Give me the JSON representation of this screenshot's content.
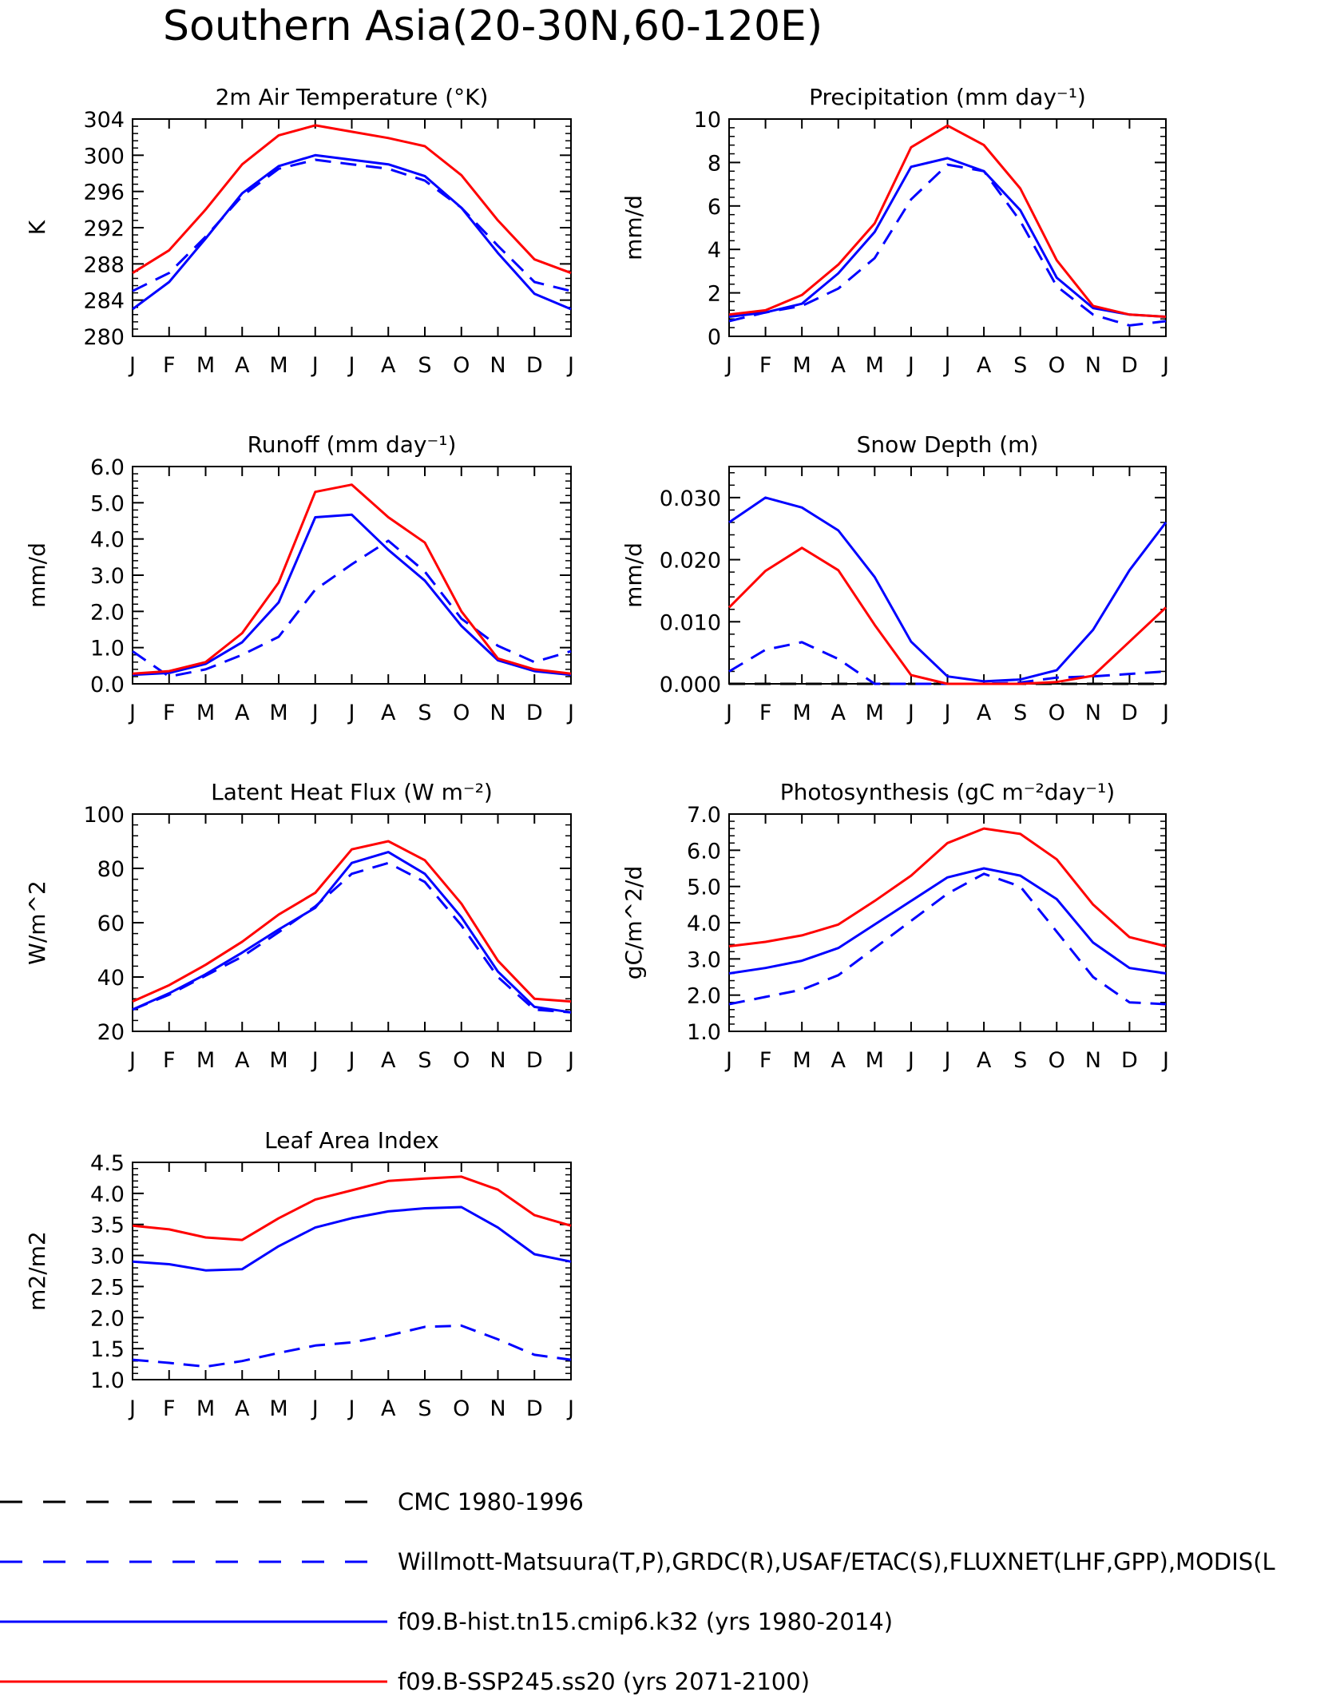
{
  "title": "Southern Asia(20-30N,60-120E)",
  "colors": {
    "cmc": "#000000",
    "obs": "#0000ff",
    "hist": "#0000ff",
    "ssp": "#ff0000"
  },
  "legend": [
    {
      "key": "cmc",
      "label": "CMC 1980-1996",
      "color": "#000000",
      "style": "dashed"
    },
    {
      "key": "obs",
      "label": "Willmott-Matsuura(T,P),GRDC(R),USAF/ETAC(S),FLUXNET(LHF,GPP),MODIS(L",
      "color": "#0000ff",
      "style": "dashed"
    },
    {
      "key": "hist",
      "label": "f09.B-hist.tn15.cmip6.k32 (yrs 1980-2014)",
      "color": "#0000ff",
      "style": "solid"
    },
    {
      "key": "ssp",
      "label": "f09.B-SSP245.ss20 (yrs 2071-2100)",
      "color": "#ff0000",
      "style": "solid"
    }
  ],
  "months": [
    "J",
    "F",
    "M",
    "A",
    "M",
    "J",
    "J",
    "A",
    "S",
    "O",
    "N",
    "D",
    "J"
  ],
  "chart_data": [
    {
      "id": "temp",
      "type": "line",
      "title": "2m Air Temperature (°K)",
      "ylabel": "K",
      "ylim": [
        280,
        304
      ],
      "yticks": [
        "280",
        "284",
        "288",
        "292",
        "296",
        "300",
        "304"
      ],
      "series": [
        {
          "key": "obs",
          "style": "dashed",
          "values": [
            285.0,
            287.0,
            291.0,
            295.5,
            298.5,
            299.5,
            299.0,
            298.5,
            297.2,
            294.2,
            290.0,
            286.0,
            285.0
          ]
        },
        {
          "key": "hist",
          "style": "solid",
          "values": [
            283.0,
            286.0,
            290.8,
            295.8,
            298.8,
            300.0,
            299.5,
            299.0,
            297.7,
            294.2,
            289.2,
            284.7,
            283.0
          ]
        },
        {
          "key": "ssp",
          "style": "solid",
          "values": [
            287.0,
            289.5,
            294.0,
            299.0,
            302.2,
            303.3,
            302.6,
            301.9,
            301.0,
            297.8,
            292.8,
            288.5,
            287.0
          ]
        }
      ]
    },
    {
      "id": "precip",
      "type": "line",
      "title": "Precipitation (mm day⁻¹)",
      "ylabel": "mm/d",
      "ylim": [
        0,
        10
      ],
      "yticks": [
        "0",
        "2",
        "4",
        "6",
        "8",
        "10"
      ],
      "series": [
        {
          "key": "obs",
          "style": "dashed",
          "values": [
            0.7,
            1.1,
            1.4,
            2.2,
            3.6,
            6.3,
            7.9,
            7.6,
            5.3,
            2.3,
            1.0,
            0.5,
            0.7
          ]
        },
        {
          "key": "hist",
          "style": "solid",
          "values": [
            0.9,
            1.1,
            1.5,
            2.9,
            4.8,
            7.8,
            8.2,
            7.6,
            5.8,
            2.7,
            1.3,
            1.0,
            0.9
          ]
        },
        {
          "key": "ssp",
          "style": "solid",
          "values": [
            1.0,
            1.2,
            1.9,
            3.3,
            5.2,
            8.7,
            9.7,
            8.8,
            6.8,
            3.5,
            1.4,
            1.0,
            0.9
          ]
        }
      ]
    },
    {
      "id": "runoff",
      "type": "line",
      "title": "Runoff (mm day⁻¹)",
      "ylabel": "mm/d",
      "ylim": [
        0,
        6
      ],
      "yticks": [
        "0.0",
        "1.0",
        "2.0",
        "3.0",
        "4.0",
        "5.0",
        "6.0"
      ],
      "series": [
        {
          "key": "obs",
          "style": "dashed",
          "values": [
            0.9,
            0.2,
            0.4,
            0.8,
            1.3,
            2.6,
            3.3,
            3.95,
            3.1,
            1.8,
            1.05,
            0.6,
            0.9
          ]
        },
        {
          "key": "hist",
          "style": "solid",
          "values": [
            0.25,
            0.3,
            0.55,
            1.15,
            2.25,
            4.6,
            4.67,
            3.7,
            2.85,
            1.6,
            0.65,
            0.35,
            0.25
          ]
        },
        {
          "key": "ssp",
          "style": "solid",
          "values": [
            0.28,
            0.35,
            0.6,
            1.4,
            2.8,
            5.3,
            5.5,
            4.6,
            3.9,
            2.0,
            0.7,
            0.4,
            0.28
          ]
        }
      ]
    },
    {
      "id": "snow",
      "type": "line",
      "title": "Snow Depth (m)",
      "ylabel": "mm/d",
      "ylim": [
        0,
        0.035
      ],
      "yticks": [
        "0.000",
        "0.010",
        "0.020",
        "0.030"
      ],
      "ytickvals": [
        0,
        0.01,
        0.02,
        0.03
      ],
      "series": [
        {
          "key": "cmc",
          "style": "dashed",
          "values": [
            0,
            0,
            0,
            0,
            0,
            0,
            0,
            0,
            0,
            0,
            0,
            0,
            0
          ]
        },
        {
          "key": "obs",
          "style": "dashed",
          "values": [
            0.002,
            0.0055,
            0.0067,
            0.004,
            0.0,
            0.0,
            0.0,
            0.0,
            0.0002,
            0.001,
            0.0012,
            0.0016,
            0.002
          ]
        },
        {
          "key": "hist",
          "style": "solid",
          "values": [
            0.026,
            0.03,
            0.0284,
            0.0247,
            0.0172,
            0.0068,
            0.0012,
            0.0004,
            0.0007,
            0.0022,
            0.0087,
            0.0183,
            0.026
          ]
        },
        {
          "key": "ssp",
          "style": "solid",
          "values": [
            0.0123,
            0.0182,
            0.0219,
            0.0183,
            0.0095,
            0.0014,
            0.0,
            0.0,
            0.0,
            0.0003,
            0.0013,
            0.0068,
            0.0123
          ]
        }
      ]
    },
    {
      "id": "lhf",
      "type": "line",
      "title": "Latent Heat Flux (W m⁻²)",
      "ylabel": "W/m^2",
      "ylim": [
        20,
        100
      ],
      "yticks": [
        "20",
        "40",
        "60",
        "80",
        "100"
      ],
      "series": [
        {
          "key": "obs",
          "style": "dashed",
          "values": [
            28,
            33.5,
            40.5,
            47.5,
            56.5,
            66,
            78,
            82,
            75,
            59,
            40,
            28,
            27
          ]
        },
        {
          "key": "hist",
          "style": "solid",
          "values": [
            28,
            34,
            41,
            49,
            57.5,
            65.5,
            82,
            86,
            78,
            62,
            42,
            29,
            27
          ]
        },
        {
          "key": "ssp",
          "style": "solid",
          "values": [
            31,
            37,
            44.5,
            53,
            63,
            71,
            87,
            90,
            83,
            67,
            46,
            32,
            31
          ]
        }
      ]
    },
    {
      "id": "gpp",
      "type": "line",
      "title": "Photosynthesis (gC m⁻²day⁻¹)",
      "ylabel": "gC/m^2/d",
      "ylim": [
        1,
        7
      ],
      "yticks": [
        "1.0",
        "2.0",
        "3.0",
        "4.0",
        "5.0",
        "6.0",
        "7.0"
      ],
      "series": [
        {
          "key": "obs",
          "style": "dashed",
          "values": [
            1.75,
            1.95,
            2.15,
            2.55,
            3.3,
            4.05,
            4.8,
            5.35,
            5.0,
            3.75,
            2.5,
            1.8,
            1.75
          ]
        },
        {
          "key": "hist",
          "style": "solid",
          "values": [
            2.6,
            2.75,
            2.95,
            3.3,
            3.95,
            4.6,
            5.25,
            5.5,
            5.3,
            4.65,
            3.45,
            2.75,
            2.6
          ]
        },
        {
          "key": "ssp",
          "style": "solid",
          "values": [
            3.35,
            3.47,
            3.65,
            3.95,
            4.6,
            5.3,
            6.2,
            6.6,
            6.45,
            5.75,
            4.5,
            3.6,
            3.35
          ]
        }
      ]
    },
    {
      "id": "lai",
      "type": "line",
      "title": "Leaf Area Index",
      "ylabel": "m2/m2",
      "ylim": [
        1,
        4.5
      ],
      "yticks": [
        "1.0",
        "1.5",
        "2.0",
        "2.5",
        "3.0",
        "3.5",
        "4.0",
        "4.5"
      ],
      "series": [
        {
          "key": "obs",
          "style": "dashed",
          "values": [
            1.32,
            1.27,
            1.21,
            1.3,
            1.43,
            1.55,
            1.6,
            1.71,
            1.85,
            1.87,
            1.65,
            1.4,
            1.32
          ]
        },
        {
          "key": "hist",
          "style": "solid",
          "values": [
            2.9,
            2.86,
            2.76,
            2.78,
            3.15,
            3.45,
            3.6,
            3.71,
            3.76,
            3.78,
            3.45,
            3.02,
            2.9
          ]
        },
        {
          "key": "ssp",
          "style": "solid",
          "values": [
            3.48,
            3.42,
            3.29,
            3.25,
            3.6,
            3.9,
            4.05,
            4.2,
            4.24,
            4.27,
            4.06,
            3.65,
            3.48
          ]
        }
      ]
    }
  ]
}
